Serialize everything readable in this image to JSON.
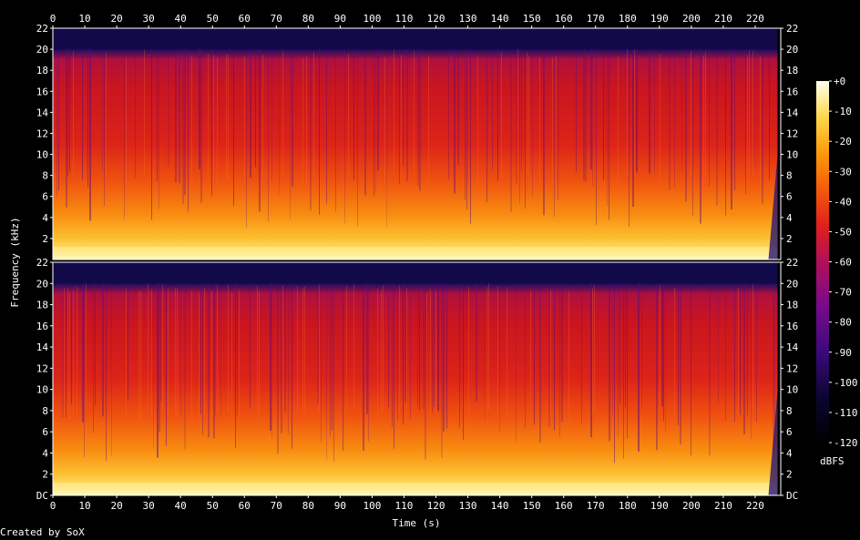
{
  "chart_data": {
    "type": "heatmap",
    "xlabel": "Time (s)",
    "ylabel": "Frequency (kHz)",
    "x_ticks": [
      0,
      10,
      20,
      30,
      40,
      50,
      60,
      70,
      80,
      90,
      100,
      110,
      120,
      130,
      140,
      150,
      160,
      170,
      180,
      190,
      200,
      210,
      220
    ],
    "xlim": [
      0,
      228
    ],
    "y_ticks_top": [
      "22",
      "20",
      "18",
      "16",
      "14",
      "12",
      "10",
      "8",
      "6",
      "4",
      "2"
    ],
    "y_ticks_bottom": [
      "22",
      "20",
      "18",
      "16",
      "14",
      "12",
      "10",
      "8",
      "6",
      "4",
      "2",
      "DC"
    ],
    "ylim_khz": [
      0,
      22
    ],
    "channels": 2,
    "colorbar": {
      "label": "dBFS",
      "ticks": [
        "+0",
        "-10",
        "-20",
        "-30",
        "-40",
        "-50",
        "-60",
        "-70",
        "-80",
        "-90",
        "-100",
        "-110",
        "-120"
      ],
      "range_db": [
        -120,
        0
      ]
    },
    "audio_end_s": 227,
    "rolloff_khz": 20
  },
  "footer": {
    "credit": "Created by SoX"
  },
  "colors": {
    "background": "#000000",
    "text": "#ffffff",
    "axis": "#ffffff"
  }
}
